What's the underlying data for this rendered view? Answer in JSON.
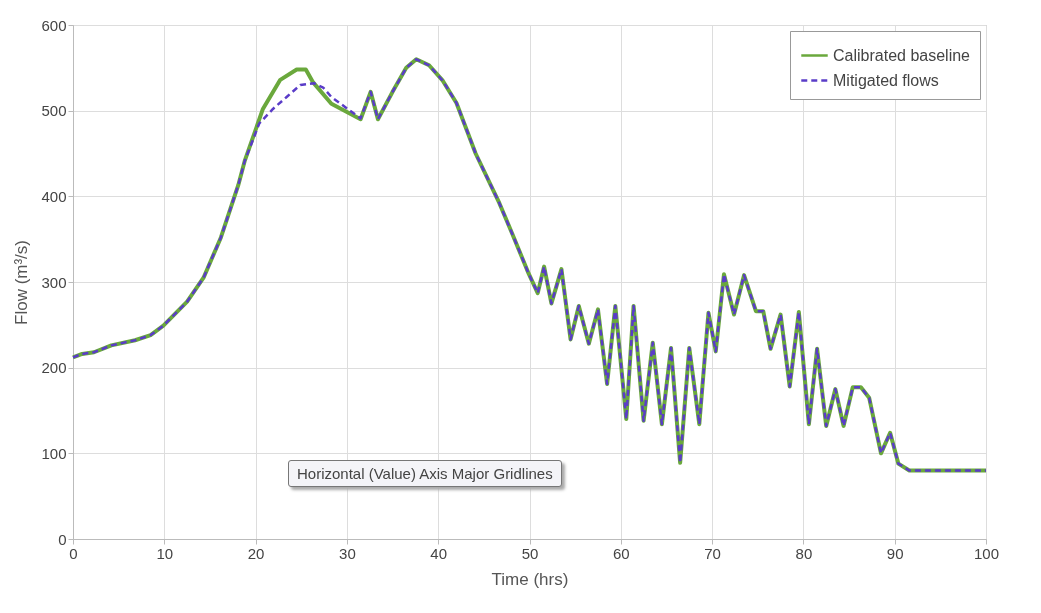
{
  "chart_data": {
    "type": "line",
    "xlabel": "Time (hrs)",
    "ylabel": "Flow (m³/s)",
    "xlim": [
      0,
      100
    ],
    "xticks": [
      0,
      10,
      20,
      30,
      40,
      50,
      60,
      70,
      80,
      90,
      100
    ],
    "ylim": [
      0,
      600
    ],
    "yticks": [
      0,
      100,
      200,
      300,
      400,
      500,
      600
    ],
    "grid": true,
    "legend": "top right",
    "annotations": [
      "Horizontal (Value) Axis Major Gridlines"
    ],
    "series": [
      {
        "name": "Calibrated baseline",
        "color": "#6aa83c",
        "line_style": "solid",
        "x": [
          0,
          1,
          2.3,
          4.2,
          6.8,
          8.5,
          9.9,
          12.5,
          14.3,
          16.2,
          18.1,
          18.8,
          20.8,
          22.7,
          24.5,
          25.5,
          26.3,
          28.3,
          31.5,
          32.6,
          33.4,
          35,
          36.5,
          37.6,
          39,
          40.5,
          42,
          44.1,
          46.7,
          48.2,
          49.9,
          50.9,
          51.6,
          52.4,
          53.5,
          54.5,
          55.4,
          56.5,
          57.5,
          58.5,
          59.4,
          60.6,
          61.4,
          62.5,
          63.5,
          64.5,
          65.5,
          66.5,
          67.5,
          68.6,
          69.6,
          70.4,
          71.3,
          72.4,
          73.5,
          74.8,
          75.6,
          76.4,
          77.5,
          78.5,
          79.5,
          80.6,
          81.5,
          82.5,
          83.5,
          84.4,
          85.4,
          86.3,
          87.2,
          88.5,
          89.5,
          90.4,
          91.6,
          100
        ],
        "values": [
          212,
          216,
          218,
          226,
          232,
          238,
          249,
          277,
          305,
          352,
          413,
          441,
          502,
          536,
          548,
          548,
          533,
          508,
          490,
          522,
          490,
          522,
          550,
          560,
          553,
          535,
          509,
          450,
          392,
          354,
          310,
          287,
          318,
          275,
          315,
          233,
          272,
          228,
          268,
          181,
          272,
          140,
          272,
          138,
          229,
          134,
          223,
          89,
          223,
          134,
          264,
          219,
          309,
          262,
          308,
          266,
          266,
          222,
          262,
          178,
          265,
          134,
          222,
          132,
          175,
          132,
          177,
          177,
          165,
          100,
          124,
          88,
          80,
          80
        ]
      },
      {
        "name": "Mitigated flows",
        "color": "#5a3cc8",
        "line_style": "dashed",
        "x": [
          0,
          1,
          2.3,
          4.2,
          6.8,
          8.5,
          9.9,
          12.5,
          14.3,
          16.2,
          18.1,
          18.8,
          20.4,
          21.9,
          23.4,
          24.9,
          26.4,
          27.4,
          28.3,
          31.5,
          32.6,
          33.4,
          35,
          36.5,
          37.6,
          39,
          40.5,
          42,
          44.1,
          46.7,
          48.2,
          49.9,
          50.9,
          51.6,
          52.4,
          53.5,
          54.5,
          55.4,
          56.5,
          57.5,
          58.5,
          59.4,
          60.6,
          61.4,
          62.5,
          63.5,
          64.5,
          65.5,
          66.5,
          67.5,
          68.6,
          69.6,
          70.4,
          71.3,
          72.4,
          73.5,
          74.8,
          75.6,
          76.4,
          77.5,
          78.5,
          79.5,
          80.6,
          81.5,
          82.5,
          83.5,
          84.4,
          85.4,
          86.3,
          87.2,
          88.5,
          89.5,
          90.4,
          91.6,
          100
        ],
        "values": [
          212,
          216,
          218,
          226,
          232,
          238,
          249,
          277,
          305,
          352,
          413,
          441,
          485,
          502,
          516,
          530,
          532,
          527,
          516,
          491,
          522,
          490,
          522,
          550,
          560,
          553,
          535,
          509,
          450,
          392,
          354,
          310,
          287,
          318,
          275,
          315,
          233,
          272,
          228,
          268,
          181,
          272,
          140,
          272,
          138,
          229,
          134,
          223,
          89,
          223,
          134,
          264,
          219,
          309,
          262,
          308,
          266,
          266,
          222,
          262,
          178,
          265,
          134,
          222,
          132,
          175,
          132,
          177,
          177,
          165,
          100,
          124,
          88,
          80,
          80
        ]
      }
    ]
  }
}
